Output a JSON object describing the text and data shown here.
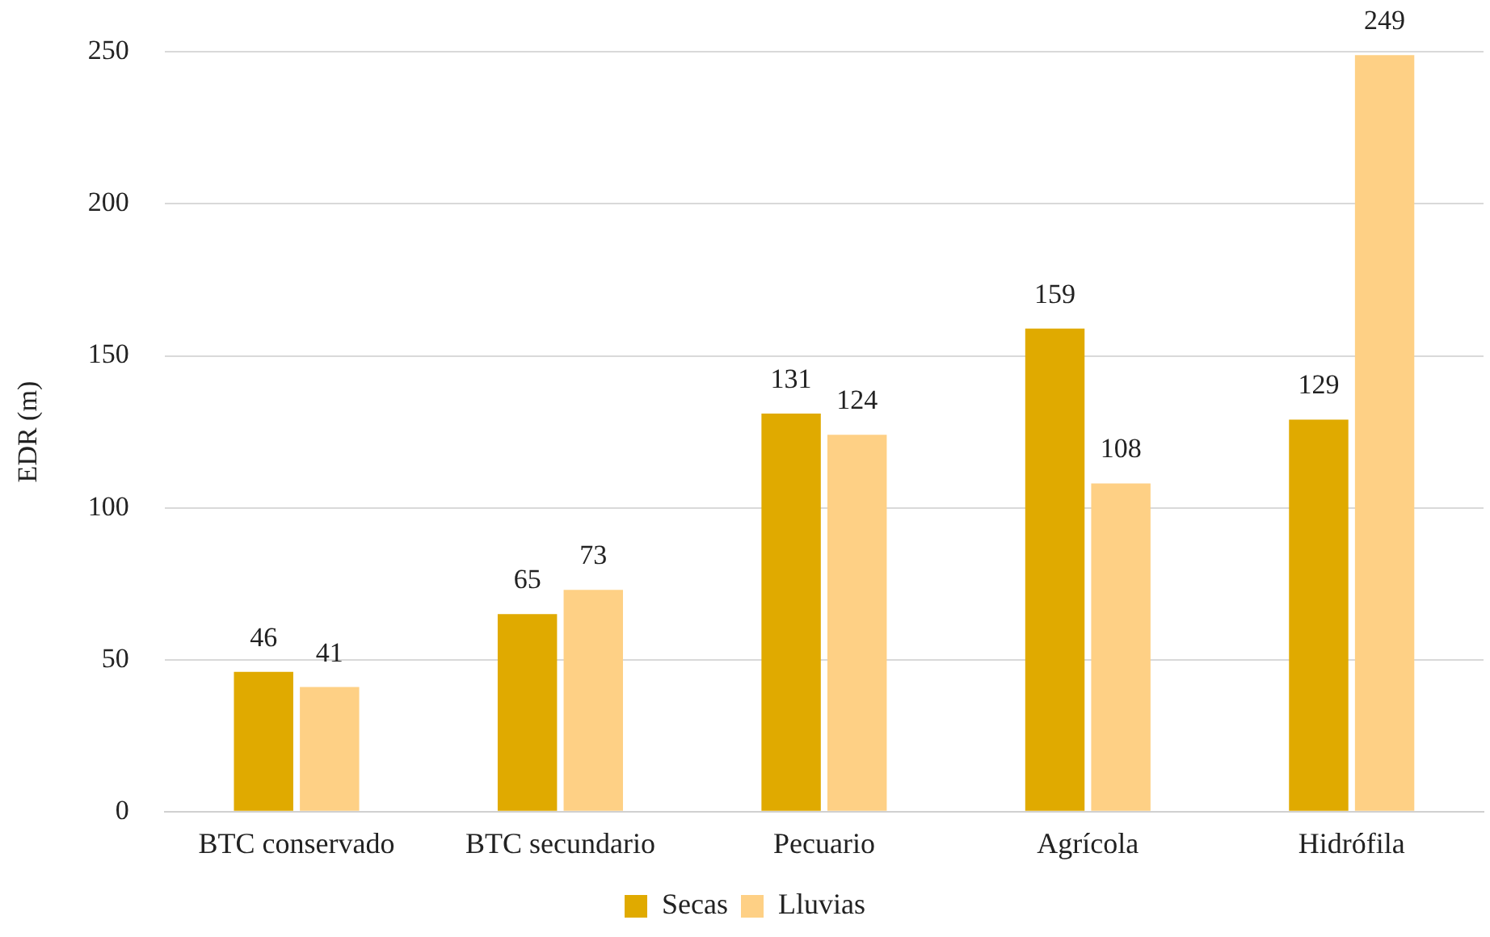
{
  "chart_data": {
    "type": "bar",
    "ylabel": "EDR (m)",
    "categories": [
      "BTC conservado",
      "BTC secundario",
      "Pecuario",
      "Agrícola",
      "Hidrófila"
    ],
    "series": [
      {
        "name": "Secas",
        "color": "#e0aa00",
        "values": [
          46,
          65,
          131,
          159,
          129
        ]
      },
      {
        "name": "Lluvias",
        "color": "#fed085",
        "values": [
          41,
          73,
          124,
          108,
          249
        ]
      }
    ],
    "ylim": [
      0,
      250
    ],
    "yticks": [
      0,
      50,
      100,
      150,
      200,
      250
    ],
    "grid": "y",
    "legend": "bottom",
    "data_labels": true
  }
}
